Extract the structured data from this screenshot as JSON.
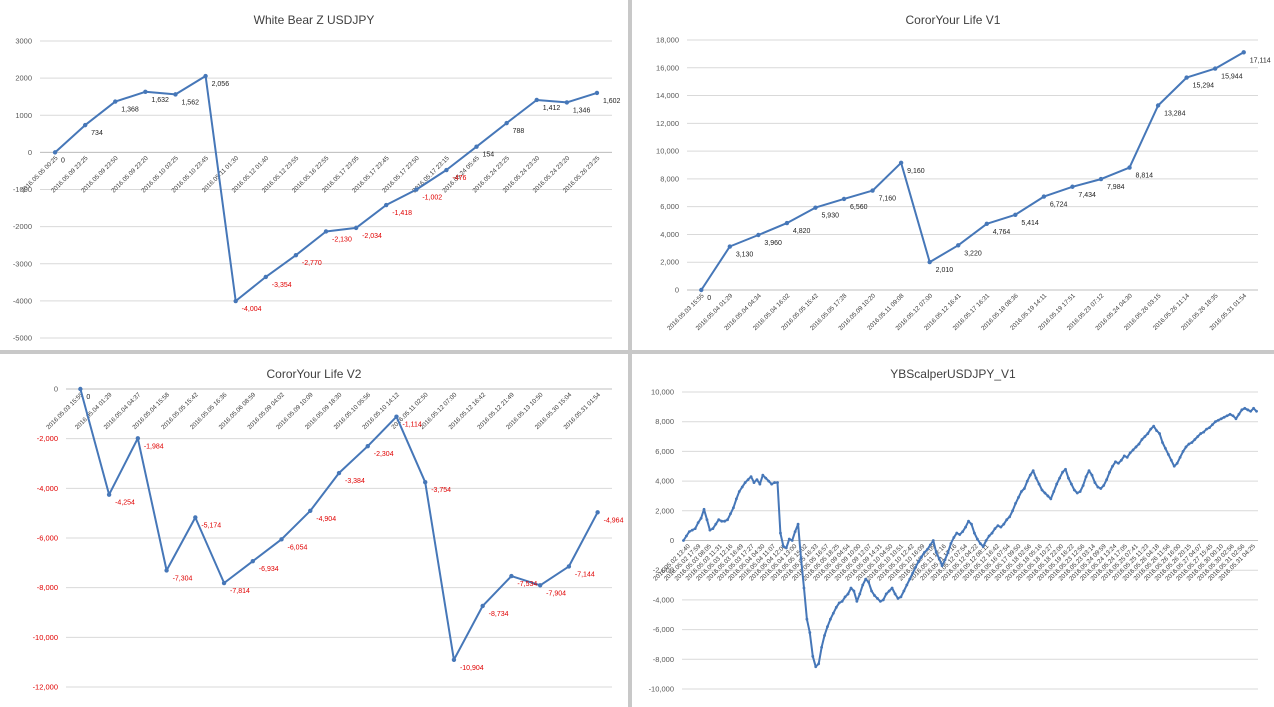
{
  "chart_data": [
    {
      "type": "line",
      "title": "White Bear Z USDJPY",
      "color": "#4677b8",
      "ylim": [
        -5000,
        3000
      ],
      "y_ticks": [
        3000,
        2000,
        1000,
        0,
        -1000,
        -2000,
        -3000,
        -4000,
        -5000
      ],
      "y_tick_labels": [
        "3000",
        "2000",
        "1000",
        "0",
        "-1000",
        "-2000",
        "-3000",
        "-4000",
        "-5000"
      ],
      "neg_ticks_red": false,
      "x_tick_labels": [
        "2016.05.05 00:25",
        "2016.05.09 23:25",
        "2016.05.09 23:50",
        "2016.05.09 23:20",
        "2016.05.10 03:25",
        "2016.05.10 23:45",
        "2016.05.11 01:30",
        "2016.05.12 01:40",
        "2016.05.12 23:55",
        "2016.05.16 22:55",
        "2016.05.17 23:05",
        "2016.05.17 23:45",
        "2016.05.17 23:50",
        "2016.05.17 23:15",
        "2016.05.24 05:45",
        "2016.05.24 23:25",
        "2016.05.24 23:30",
        "2016.05.24 23:20",
        "2016.05.26 23:25"
      ],
      "values": [
        0,
        734,
        1368,
        1632,
        1562,
        2056,
        -4004,
        -3354,
        -2770,
        -2130,
        -2034,
        -1418,
        -1002,
        -476,
        154,
        788,
        1412,
        1346,
        1602
      ],
      "data_labels": [
        "0",
        "734",
        "1,368",
        "1,632",
        "1,562",
        "2,056",
        "-4,004",
        "-3,354",
        "-2,770",
        "-2,130",
        "-2,034",
        "-1,418",
        "-1,002",
        "-476",
        "154",
        "788",
        "1,412",
        "1,346",
        "1,602"
      ]
    },
    {
      "type": "line",
      "title": "CororYour Life V1",
      "color": "#4677b8",
      "ylim": [
        0,
        18000
      ],
      "y_ticks": [
        18000,
        16000,
        14000,
        12000,
        10000,
        8000,
        6000,
        4000,
        2000,
        0
      ],
      "y_tick_labels": [
        "18,000",
        "16,000",
        "14,000",
        "12,000",
        "10,000",
        "8,000",
        "6,000",
        "4,000",
        "2,000",
        "0"
      ],
      "neg_ticks_red": false,
      "x_tick_labels": [
        "2016.05.03 15:55",
        "2016.05.04 01:29",
        "2016.05.04 04:34",
        "2016.05.04 16:02",
        "2016.05.05 15:42",
        "2016.05.05 17:28",
        "2016.05.09 10:20",
        "2016.05.11 09:08",
        "2016.05.12 07:00",
        "2016.05.12 16:41",
        "2016.05.17 16:31",
        "2016.05.18 08:36",
        "2016.05.19 14:11",
        "2016.05.19 17:51",
        "2016.05.23 07:12",
        "2016.05.24 04:30",
        "2016.05.26 03:15",
        "2016.05.26 11:14",
        "2016.05.26 18:35",
        "2016.05.31 01:54"
      ],
      "values": [
        0,
        3130,
        3960,
        4820,
        5930,
        6560,
        7160,
        9160,
        2010,
        3220,
        4764,
        5414,
        6724,
        7434,
        7984,
        8814,
        13284,
        15294,
        15944,
        17114
      ],
      "data_labels": [
        "0",
        "3,130",
        "3,960",
        "4,820",
        "5,930",
        "6,560",
        "7,160",
        "9,160",
        "2,010",
        "3,220",
        "4,764",
        "5,414",
        "6,724",
        "7,434",
        "7,984",
        "8,814",
        "13,284",
        "15,294",
        "15,944",
        "17,114"
      ]
    },
    {
      "type": "line",
      "title": "CororYour Life V2",
      "color": "#4677b8",
      "ylim": [
        -12000,
        0
      ],
      "y_ticks": [
        0,
        -2000,
        -4000,
        -6000,
        -8000,
        -10000,
        -12000
      ],
      "y_tick_labels": [
        "0",
        "-2,000",
        "-4,000",
        "-6,000",
        "-8,000",
        "-10,000",
        "-12,000"
      ],
      "neg_ticks_red": true,
      "x_tick_labels": [
        "2016.05.03 15:55",
        "2016.05.04 01:29",
        "2016.05.04 04:37",
        "2016.05.04 15:58",
        "2016.05.05 15:42",
        "2016.05.05 16:36",
        "2016.05.06 08:59",
        "2016.05.09 04:02",
        "2016.05.09 10:09",
        "2016.05.09 18:30",
        "2016.05.10 05:56",
        "2016.05.10 14:12",
        "2016.05.11 02:50",
        "2016.05.12 07:00",
        "2016.05.12 16:42",
        "2016.05.12 21:49",
        "2016.05.13 10:50",
        "2016.05.30 15:04",
        "2016.05.31 01:54"
      ],
      "values": [
        0,
        -4254,
        -1984,
        -7304,
        -5174,
        -7814,
        -6934,
        -6054,
        -4904,
        -3384,
        -2304,
        -1114,
        -3754,
        -10904,
        -8734,
        -7534,
        -7904,
        -7144,
        -4964
      ],
      "data_labels": [
        "0",
        "-4,254",
        "-1,984",
        "-7,304",
        "-5,174",
        "-7,814",
        "-6,934",
        "-6,054",
        "-4,904",
        "-3,384",
        "-2,304",
        "-1,114",
        "-3,754",
        "-10,904",
        "-8,734",
        "-7,534",
        "-7,904",
        "-7,144",
        "-4,964"
      ]
    },
    {
      "type": "line",
      "title": "YBScalperUSDJPY_V1",
      "color": "#4677b8",
      "ylim": [
        -10000,
        10000
      ],
      "y_ticks": [
        10000,
        8000,
        6000,
        4000,
        2000,
        0,
        -2000,
        -4000,
        -6000,
        -8000,
        -10000
      ],
      "y_tick_labels": [
        "10,000",
        "8,000",
        "6,000",
        "4,000",
        "2,000",
        "0",
        "-2,000",
        "-4,000",
        "-6,000",
        "-8,000",
        "-10,000"
      ],
      "neg_ticks_red": false,
      "x_tick_labels": [
        "2016.05.02 13:40",
        "2016.05.02 17:59",
        "2016.05.03 08:05",
        "2016.05.03 11:31",
        "2016.05.03 12:16",
        "2016.05.03 16:49",
        "2016.05.03 17:27",
        "2016.05.04 04:30",
        "2016.05.04 11:07",
        "2016.05.04 12:02",
        "2016.05.04 13:00",
        "2016.05.05 15:02",
        "2016.05.05 16:33",
        "2016.05.05 16:57",
        "2016.05.05 18:25",
        "2016.05.09 04:54",
        "2016.05.09 10:00",
        "2016.05.09 12:07",
        "2016.05.09 14:31",
        "2016.05.10 04:50",
        "2016.05.10 10:51",
        "2016.05.10 12:42",
        "2016.05.10 16:09",
        "2016.05.10 22:09",
        "2016.05.11 13:16",
        "2016.05.11 17:16",
        "2016.05.12 07:54",
        "2016.05.12 04:22",
        "2016.05.12 08:11",
        "2016.05.12 16:42",
        "2016.05.16 07:54",
        "2016.05.17 09:50",
        "2016.05.18 02:56",
        "2016.05.18 05:16",
        "2016.05.18 10:27",
        "2016.05.18 22:00",
        "2016.05.19 16:22",
        "2016.05.23 12:56",
        "2016.05.23 03:14",
        "2016.05.24 09:59",
        "2016.05.24 13:24",
        "2016.05.24 17:05",
        "2016.05.25 07:41",
        "2016.05.25 11:23",
        "2016.05.26 04:18",
        "2016.05.26 11:56",
        "2016.05.26 16:00",
        "2016.05.26 20:15",
        "2016.05.27 04:07",
        "2016.05.27 15:45",
        "2016.05.30 00:10",
        "2016.05.30 02:56",
        "2016.05.31 02:56",
        "2016.05.31 04:25"
      ],
      "values": [
        0,
        300,
        600,
        700,
        800,
        1200,
        1500,
        2100,
        1400,
        700,
        800,
        1100,
        1400,
        1300,
        1300,
        1400,
        1800,
        2200,
        2800,
        3300,
        3600,
        3900,
        4100,
        4300,
        3900,
        4100,
        3800,
        4400,
        4200,
        4000,
        3800,
        3900,
        3900,
        500,
        -400,
        -500,
        100,
        0,
        600,
        1100,
        -1200,
        -3200,
        -5300,
        -6200,
        -7800,
        -8500,
        -8300,
        -7200,
        -6400,
        -5800,
        -5300,
        -4900,
        -4500,
        -4200,
        -4100,
        -3800,
        -3600,
        -3200,
        -3400,
        -4100,
        -3600,
        -3000,
        -2600,
        -2800,
        -3400,
        -3700,
        -3900,
        -4100,
        -4000,
        -3600,
        -3400,
        -3200,
        -3600,
        -3900,
        -3800,
        -3400,
        -3000,
        -2600,
        -2200,
        -1800,
        -1400,
        -1100,
        -800,
        -600,
        -300,
        0,
        -800,
        -1200,
        -1700,
        -1300,
        -800,
        -200,
        200,
        500,
        400,
        600,
        900,
        1300,
        1100,
        500,
        100,
        -200,
        -400,
        0,
        300,
        500,
        800,
        1000,
        900,
        1100,
        1400,
        1600,
        2000,
        2500,
        2900,
        3300,
        3500,
        4000,
        4400,
        4700,
        4200,
        3800,
        3400,
        3200,
        3000,
        2800,
        3300,
        3800,
        4200,
        4600,
        4800,
        4200,
        3800,
        3400,
        3200,
        3300,
        3700,
        4300,
        4700,
        4400,
        3900,
        3600,
        3500,
        3700,
        4100,
        4600,
        5000,
        5300,
        5200,
        5400,
        5700,
        5600,
        5900,
        6100,
        6300,
        6500,
        6800,
        7000,
        7200,
        7500,
        7700,
        7400,
        7200,
        6600,
        6200,
        5800,
        5400,
        5000,
        5200,
        5600,
        6000,
        6300,
        6500,
        6600,
        6800,
        7000,
        7200,
        7300,
        7500,
        7600,
        7800,
        8000,
        8100,
        8200,
        8300,
        8400,
        8500,
        8400,
        8200,
        8500,
        8800,
        8900,
        8800,
        8700,
        8900,
        8700
      ],
      "data_labels": []
    }
  ]
}
